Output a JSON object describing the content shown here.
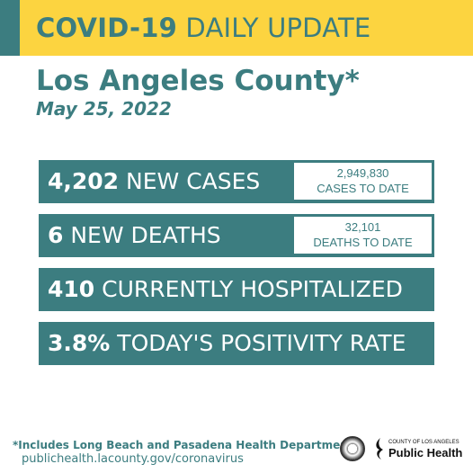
{
  "header": {
    "title_bold": "COVID-19",
    "title_rest": "DAILY UPDATE"
  },
  "location": "Los Angeles County*",
  "date": "May 25, 2022",
  "stats": [
    {
      "value": "4,202",
      "label": "NEW CASES",
      "todate_value": "2,949,830",
      "todate_label": "CASES TO DATE"
    },
    {
      "value": "6",
      "label": "NEW DEATHS",
      "todate_value": "32,101",
      "todate_label": "DEATHS TO DATE"
    },
    {
      "value": "410",
      "label": "CURRENTLY HOSPITALIZED"
    },
    {
      "value": "3.8%",
      "label": "TODAY'S POSITIVITY RATE"
    }
  ],
  "footer": {
    "note": "*Includes Long Beach and Pasadena Health Departments",
    "url": "publichealth.lacounty.gov/coronavirus",
    "logo_small": "COUNTY OF LOS ANGELES",
    "logo_big": "Public Health"
  },
  "colors": {
    "banner": "#fcd440",
    "teal": "#3c7d80"
  }
}
